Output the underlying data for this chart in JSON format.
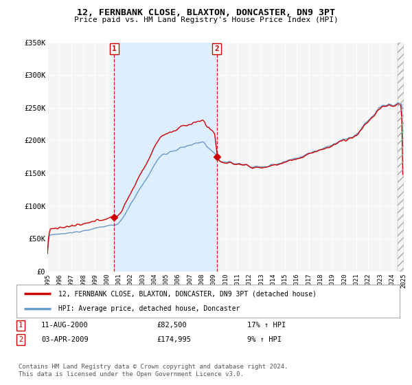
{
  "title": "12, FERNBANK CLOSE, BLAXTON, DONCASTER, DN9 3PT",
  "subtitle": "Price paid vs. HM Land Registry's House Price Index (HPI)",
  "ylim": [
    0,
    350000
  ],
  "yticks": [
    0,
    50000,
    100000,
    150000,
    200000,
    250000,
    300000,
    350000
  ],
  "ytick_labels": [
    "£0",
    "£50K",
    "£100K",
    "£150K",
    "£200K",
    "£250K",
    "£300K",
    "£350K"
  ],
  "background_color": "#ffffff",
  "plot_bg_color": "#f5f5f5",
  "grid_color": "#ffffff",
  "shade_color": "#ddeeff",
  "transaction1": {
    "date": 2000.62,
    "price": 82500,
    "label": "1"
  },
  "transaction2": {
    "date": 2009.25,
    "price": 174995,
    "label": "2"
  },
  "legend_line1": "12, FERNBANK CLOSE, BLAXTON, DONCASTER, DN9 3PT (detached house)",
  "legend_line2": "HPI: Average price, detached house, Doncaster",
  "table_row1": [
    "1",
    "11-AUG-2000",
    "£82,500",
    "17% ↑ HPI"
  ],
  "table_row2": [
    "2",
    "03-APR-2009",
    "£174,995",
    "9% ↑ HPI"
  ],
  "footer": "Contains HM Land Registry data © Crown copyright and database right 2024.\nThis data is licensed under the Open Government Licence v3.0.",
  "line_color_red": "#cc0000",
  "line_color_blue": "#6699cc",
  "vline_color": "#cc0000",
  "start_year": 1995,
  "end_year": 2025
}
